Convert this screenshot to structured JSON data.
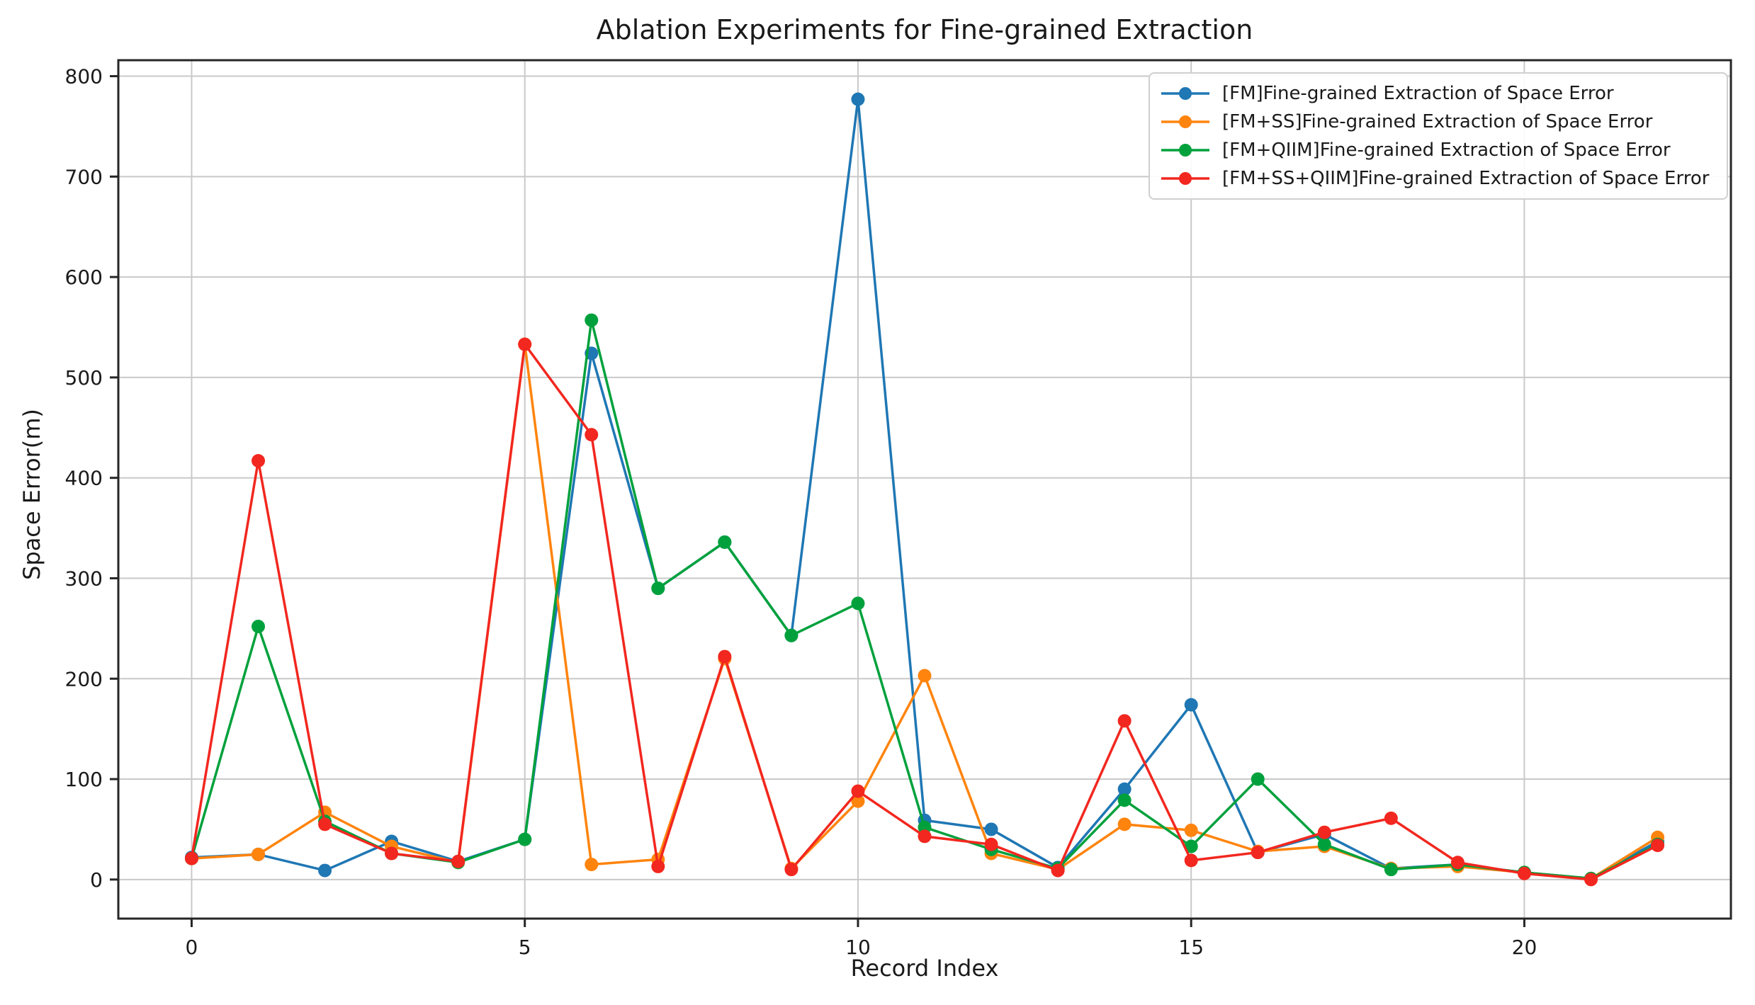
{
  "figure": {
    "title": "Ablation Experiments for Fine-grained Extraction",
    "xlabel": "Record Index",
    "ylabel": "Space Error(m)"
  },
  "chart_data": {
    "type": "line",
    "title": "Ablation Experiments for Fine-grained Extraction",
    "xlabel": "Record Index",
    "ylabel": "Space Error(m)",
    "grid": true,
    "legend_position": "upper right",
    "xticks": [
      0,
      5,
      10,
      15,
      20
    ],
    "yticks": [
      0,
      100,
      200,
      300,
      400,
      500,
      600,
      700,
      800
    ],
    "xlim": [
      -1.1,
      23.1
    ],
    "ylim": [
      -38.9,
      815.9
    ],
    "x": [
      0,
      1,
      2,
      3,
      4,
      5,
      6,
      7,
      8,
      9,
      10,
      11,
      12,
      13,
      14,
      15,
      16,
      17,
      18,
      19,
      20,
      21,
      22
    ],
    "series": [
      {
        "name": "[FM]Fine-grained Extraction of Space Error",
        "color": "#1f77b4",
        "values": [
          22,
          25,
          9,
          38,
          18,
          40,
          524,
          290,
          336,
          243,
          777,
          59,
          50,
          12,
          90,
          174,
          27,
          45,
          11,
          15,
          7,
          1,
          38
        ]
      },
      {
        "name": "[FM+SS]Fine-grained Extraction of Space Error",
        "color": "#ff840e",
        "values": [
          21,
          25,
          67,
          33,
          17,
          533,
          15,
          20,
          220,
          11,
          78,
          203,
          26,
          10,
          55,
          49,
          28,
          33,
          11,
          13,
          7,
          1,
          42
        ]
      },
      {
        "name": "[FM+QIIM]Fine-grained Extraction of Space Error",
        "color": "#00a13c",
        "values": [
          21,
          252,
          58,
          26,
          17,
          40,
          557,
          290,
          336,
          243,
          275,
          52,
          30,
          11,
          79,
          33,
          100,
          35,
          10,
          15,
          7,
          1,
          35
        ]
      },
      {
        "name": "[FM+SS+QIIM]Fine-grained Extraction of Space Error",
        "color": "#f2271f",
        "values": [
          21,
          417,
          55,
          26,
          18,
          533,
          443,
          13,
          222,
          10,
          88,
          43,
          35,
          9,
          158,
          19,
          27,
          47,
          61,
          17,
          6,
          0,
          34
        ]
      }
    ]
  }
}
